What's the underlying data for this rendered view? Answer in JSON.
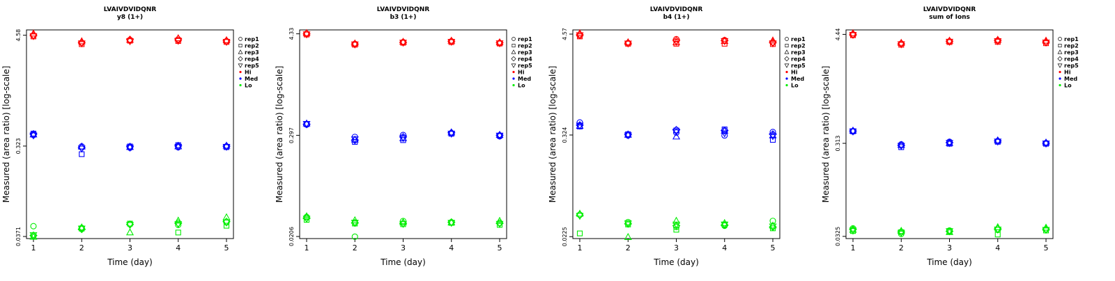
{
  "colors": {
    "Hi": "#ff0000",
    "Med": "#0000ff",
    "Lo": "#00ee00",
    "axis": "#000000"
  },
  "chart_data": [
    {
      "type": "scatter",
      "title": "LVAIVDVIDQNR",
      "subtitle": "y8 (1+)",
      "xlabel": "Time (day)",
      "ylabel": "Measured (area ratio) [log-scale]",
      "x_ticks": [
        "1",
        "2",
        "3",
        "4",
        "5"
      ],
      "y_ticks": [
        {
          "value": 0.0371,
          "label": "0.0371"
        },
        {
          "value": 0.323,
          "label": "0.323"
        },
        {
          "value": 4.58,
          "label": "4.58"
        }
      ],
      "ylim": [
        0.0353,
        5.2
      ],
      "log_y": true,
      "legend": [
        "rep1",
        "rep2",
        "rep3",
        "rep4",
        "rep5",
        "Hi",
        "Med",
        "Lo"
      ],
      "legend_position": "right",
      "series": [
        {
          "level": "Hi",
          "rep": "rep1",
          "values": [
            4.55,
            3.82,
            4.06,
            4.08,
            3.96
          ]
        },
        {
          "level": "Hi",
          "rep": "rep2",
          "values": [
            4.45,
            3.7,
            4.02,
            3.99,
            3.9
          ]
        },
        {
          "level": "Hi",
          "rep": "rep3",
          "values": [
            4.75,
            3.95,
            4.1,
            4.25,
            4.05
          ]
        },
        {
          "level": "Hi",
          "rep": "rep4",
          "values": [
            4.6,
            3.85,
            4.12,
            4.18,
            4.0
          ]
        },
        {
          "level": "Hi",
          "rep": "rep5",
          "values": [
            4.5,
            3.78,
            3.98,
            4.02,
            3.92
          ]
        },
        {
          "level": "Med",
          "rep": "rep1",
          "values": [
            0.42,
            0.32,
            0.31,
            0.314,
            0.32
          ]
        },
        {
          "level": "Med",
          "rep": "rep2",
          "values": [
            0.435,
            0.266,
            0.32,
            0.33,
            0.315
          ]
        },
        {
          "level": "Med",
          "rep": "rep3",
          "values": [
            0.425,
            0.318,
            0.315,
            0.32,
            0.325
          ]
        },
        {
          "level": "Med",
          "rep": "rep4",
          "values": [
            0.43,
            0.31,
            0.318,
            0.325,
            0.322
          ]
        },
        {
          "level": "Med",
          "rep": "rep5",
          "values": [
            0.418,
            0.305,
            0.312,
            0.318,
            0.318
          ]
        },
        {
          "level": "Lo",
          "rep": "rep1",
          "values": [
            0.0475,
            0.0455,
            0.0498,
            0.049,
            0.052
          ]
        },
        {
          "level": "Lo",
          "rep": "rep2",
          "values": [
            0.0372,
            0.0448,
            0.0505,
            0.0408,
            0.048
          ]
        },
        {
          "level": "Lo",
          "rep": "rep3",
          "values": [
            0.0368,
            0.046,
            0.0408,
            0.054,
            0.0585
          ]
        },
        {
          "level": "Lo",
          "rep": "rep4",
          "values": [
            0.038,
            0.0442,
            0.0495,
            0.051,
            0.053
          ]
        },
        {
          "level": "Lo",
          "rep": "rep5",
          "values": [
            0.0385,
            0.045,
            0.049,
            0.05,
            0.052
          ]
        }
      ]
    },
    {
      "type": "scatter",
      "title": "LVAIVDVIDQNR",
      "subtitle": "b3 (1+)",
      "xlabel": "Time (day)",
      "ylabel": "Measured (area ratio) [log-scale]",
      "x_ticks": [
        "1",
        "2",
        "3",
        "4",
        "5"
      ],
      "y_ticks": [
        {
          "value": 0.0206,
          "label": "0.0206"
        },
        {
          "value": 0.297,
          "label": "0.297"
        },
        {
          "value": 4.33,
          "label": "4.33"
        }
      ],
      "ylim": [
        0.0195,
        4.8
      ],
      "log_y": true,
      "legend": [
        "rep1",
        "rep2",
        "rep3",
        "rep4",
        "rep5",
        "Hi",
        "Med",
        "Lo"
      ],
      "legend_position": "right",
      "series": [
        {
          "level": "Hi",
          "rep": "rep1",
          "values": [
            4.35,
            3.32,
            3.48,
            3.55,
            3.4
          ]
        },
        {
          "level": "Hi",
          "rep": "rep2",
          "values": [
            4.25,
            3.25,
            3.42,
            3.48,
            3.35
          ]
        },
        {
          "level": "Hi",
          "rep": "rep3",
          "values": [
            4.4,
            3.35,
            3.5,
            3.6,
            3.45
          ]
        },
        {
          "level": "Hi",
          "rep": "rep4",
          "values": [
            4.32,
            3.3,
            3.46,
            3.56,
            3.42
          ]
        },
        {
          "level": "Hi",
          "rep": "rep5",
          "values": [
            4.28,
            3.28,
            3.44,
            3.52,
            3.38
          ]
        },
        {
          "level": "Med",
          "rep": "rep1",
          "values": [
            0.395,
            0.285,
            0.3,
            0.315,
            0.29
          ]
        },
        {
          "level": "Med",
          "rep": "rep2",
          "values": [
            0.4,
            0.25,
            0.262,
            0.31,
            0.295
          ]
        },
        {
          "level": "Med",
          "rep": "rep3",
          "values": [
            0.405,
            0.265,
            0.275,
            0.32,
            0.3
          ]
        },
        {
          "level": "Med",
          "rep": "rep4",
          "values": [
            0.398,
            0.262,
            0.285,
            0.318,
            0.298
          ]
        },
        {
          "level": "Med",
          "rep": "rep5",
          "values": [
            0.402,
            0.268,
            0.278,
            0.312,
            0.296
          ]
        },
        {
          "level": "Lo",
          "rep": "rep1",
          "values": [
            0.0345,
            0.0205,
            0.031,
            0.03,
            0.0295
          ]
        },
        {
          "level": "Lo",
          "rep": "rep2",
          "values": [
            0.032,
            0.029,
            0.0285,
            0.0295,
            0.028
          ]
        },
        {
          "level": "Lo",
          "rep": "rep3",
          "values": [
            0.035,
            0.0315,
            0.03,
            0.0298,
            0.031
          ]
        },
        {
          "level": "Lo",
          "rep": "rep4",
          "values": [
            0.0335,
            0.0295,
            0.0292,
            0.03,
            0.0292
          ]
        },
        {
          "level": "Lo",
          "rep": "rep5",
          "values": [
            0.033,
            0.0298,
            0.0288,
            0.0296,
            0.0288
          ]
        }
      ]
    },
    {
      "type": "scatter",
      "title": "LVAIVDVIDQNR",
      "subtitle": "b4 (1+)",
      "xlabel": "Time (day)",
      "ylabel": "Measured (area ratio) [log-scale]",
      "x_ticks": [
        "1",
        "2",
        "3",
        "4",
        "5"
      ],
      "y_ticks": [
        {
          "value": 0.0225,
          "label": "0.0225"
        },
        {
          "value": 0.324,
          "label": "0.324"
        },
        {
          "value": 4.57,
          "label": "4.57"
        }
      ],
      "ylim": [
        0.0214,
        5.1
      ],
      "log_y": true,
      "legend": [
        "rep1",
        "rep2",
        "rep3",
        "rep4",
        "rep5",
        "Hi",
        "Med",
        "Lo"
      ],
      "legend_position": "right",
      "series": [
        {
          "level": "Hi",
          "rep": "rep1",
          "values": [
            4.4,
            3.62,
            4.0,
            3.9,
            3.65
          ]
        },
        {
          "level": "Hi",
          "rep": "rep2",
          "values": [
            4.3,
            3.55,
            3.55,
            3.55,
            3.52
          ]
        },
        {
          "level": "Hi",
          "rep": "rep3",
          "values": [
            4.65,
            3.68,
            3.68,
            3.8,
            3.85
          ]
        },
        {
          "level": "Hi",
          "rep": "rep4",
          "values": [
            4.5,
            3.6,
            3.85,
            3.85,
            3.7
          ]
        },
        {
          "level": "Hi",
          "rep": "rep5",
          "values": [
            4.45,
            3.58,
            3.75,
            3.82,
            3.6
          ]
        },
        {
          "level": "Med",
          "rep": "rep1",
          "values": [
            0.45,
            0.32,
            0.345,
            0.32,
            0.35
          ]
        },
        {
          "level": "Med",
          "rep": "rep2",
          "values": [
            0.405,
            0.33,
            0.365,
            0.375,
            0.285
          ]
        },
        {
          "level": "Med",
          "rep": "rep3",
          "values": [
            0.41,
            0.325,
            0.31,
            0.36,
            0.32
          ]
        },
        {
          "level": "Med",
          "rep": "rep4",
          "values": [
            0.42,
            0.328,
            0.37,
            0.365,
            0.33
          ]
        },
        {
          "level": "Med",
          "rep": "rep5",
          "values": [
            0.415,
            0.322,
            0.355,
            0.34,
            0.315
          ]
        },
        {
          "level": "Lo",
          "rep": "rep1",
          "values": [
            0.04,
            0.033,
            0.029,
            0.03,
            0.034
          ]
        },
        {
          "level": "Lo",
          "rep": "rep2",
          "values": [
            0.0245,
            0.031,
            0.027,
            0.031,
            0.028
          ]
        },
        {
          "level": "Lo",
          "rep": "rep3",
          "values": [
            0.041,
            0.0222,
            0.034,
            0.032,
            0.03
          ]
        },
        {
          "level": "Lo",
          "rep": "rep4",
          "values": [
            0.0395,
            0.0315,
            0.03,
            0.0305,
            0.029
          ]
        },
        {
          "level": "Lo",
          "rep": "rep5",
          "values": [
            0.039,
            0.032,
            0.031,
            0.031,
            0.0295
          ]
        }
      ]
    },
    {
      "type": "scatter",
      "title": "LVAIVDVIDQNR",
      "subtitle": "sum of Ions",
      "xlabel": "Time (day)",
      "ylabel": "Measured (area ratio) [log-scale]",
      "x_ticks": [
        "1",
        "2",
        "3",
        "4",
        "5"
      ],
      "y_ticks": [
        {
          "value": 0.0325,
          "label": "0.0325"
        },
        {
          "value": 0.313,
          "label": "0.313"
        },
        {
          "value": 4.44,
          "label": "4.44"
        }
      ],
      "ylim": [
        0.0308,
        4.95
      ],
      "log_y": true,
      "legend": [
        "rep1",
        "rep2",
        "rep3",
        "rep4",
        "rep5",
        "Hi",
        "Med",
        "Lo"
      ],
      "legend_position": "right",
      "series": [
        {
          "level": "Hi",
          "rep": "rep1",
          "values": [
            4.42,
            3.55,
            3.74,
            3.8,
            3.68
          ]
        },
        {
          "level": "Hi",
          "rep": "rep2",
          "values": [
            4.35,
            3.45,
            3.68,
            3.7,
            3.58
          ]
        },
        {
          "level": "Hi",
          "rep": "rep3",
          "values": [
            4.55,
            3.6,
            3.8,
            3.88,
            3.8
          ]
        },
        {
          "level": "Hi",
          "rep": "rep4",
          "values": [
            4.45,
            3.52,
            3.76,
            3.84,
            3.7
          ]
        },
        {
          "level": "Hi",
          "rep": "rep5",
          "values": [
            4.4,
            3.5,
            3.72,
            3.78,
            3.65
          ]
        },
        {
          "level": "Med",
          "rep": "rep1",
          "values": [
            0.418,
            0.305,
            0.325,
            0.33,
            0.315
          ]
        },
        {
          "level": "Med",
          "rep": "rep2",
          "values": [
            0.42,
            0.285,
            0.31,
            0.325,
            0.31
          ]
        },
        {
          "level": "Med",
          "rep": "rep3",
          "values": [
            0.425,
            0.3,
            0.315,
            0.335,
            0.318
          ]
        },
        {
          "level": "Med",
          "rep": "rep4",
          "values": [
            0.422,
            0.298,
            0.318,
            0.332,
            0.314
          ]
        },
        {
          "level": "Med",
          "rep": "rep5",
          "values": [
            0.419,
            0.295,
            0.316,
            0.328,
            0.312
          ]
        },
        {
          "level": "Lo",
          "rep": "rep1",
          "values": [
            0.0395,
            0.0345,
            0.0375,
            0.038,
            0.0385
          ]
        },
        {
          "level": "Lo",
          "rep": "rep2",
          "values": [
            0.037,
            0.036,
            0.0365,
            0.034,
            0.0375
          ]
        },
        {
          "level": "Lo",
          "rep": "rep3",
          "values": [
            0.038,
            0.037,
            0.036,
            0.0405,
            0.04
          ]
        },
        {
          "level": "Lo",
          "rep": "rep4",
          "values": [
            0.0385,
            0.0362,
            0.0368,
            0.039,
            0.0388
          ]
        },
        {
          "level": "Lo",
          "rep": "rep5",
          "values": [
            0.0375,
            0.0355,
            0.037,
            0.0385,
            0.0382
          ]
        }
      ]
    }
  ]
}
